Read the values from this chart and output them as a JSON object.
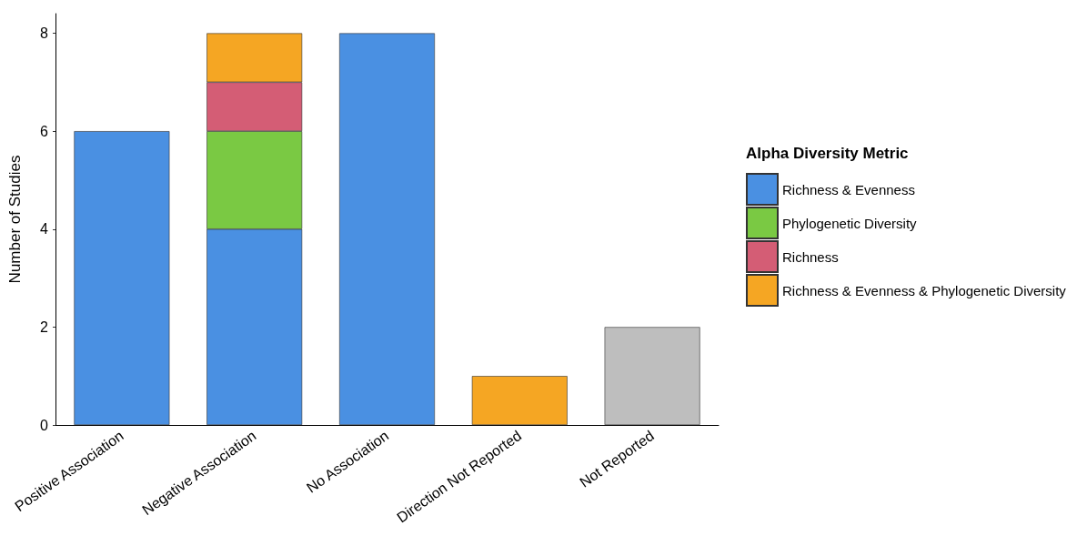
{
  "chart_data": {
    "type": "bar",
    "stacked": true,
    "ylabel": "Number of Studies",
    "legend_title": "Alpha Diversity Metric",
    "legend": "right",
    "categories": [
      "Positive Association",
      "Negative Association",
      "No Association",
      "Direction Not Reported",
      "Not Reported"
    ],
    "series": [
      {
        "name": "Richness & Evenness",
        "color": "#4a90e2",
        "values": [
          6,
          4,
          8,
          null,
          null
        ]
      },
      {
        "name": "Phylogenetic Diversity",
        "color": "#7ac943",
        "values": [
          null,
          2,
          null,
          null,
          null
        ]
      },
      {
        "name": "Richness",
        "color": "#d45d75",
        "values": [
          null,
          1,
          null,
          null,
          null
        ]
      },
      {
        "name": "Richness & Evenness & Phylogenetic Diversity",
        "color": "#f5a623",
        "values": [
          null,
          1,
          null,
          1,
          null
        ]
      },
      {
        "color": "#bebebe",
        "values": [
          null,
          null,
          null,
          null,
          2
        ]
      }
    ],
    "ylim": [
      0,
      8.4
    ],
    "yticks": [
      0,
      2,
      4,
      6,
      8
    ],
    "grid": false
  }
}
